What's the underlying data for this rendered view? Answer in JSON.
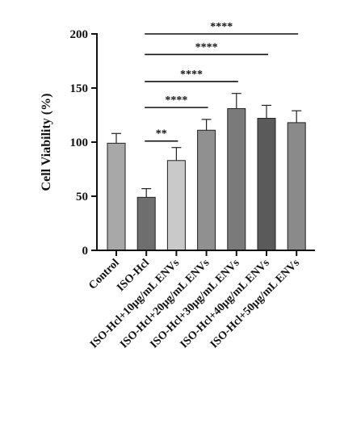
{
  "chart_data": {
    "type": "bar",
    "title": "",
    "xlabel": "",
    "ylabel": "Cell Viability (%)",
    "ylim": [
      0,
      200
    ],
    "yticks": [
      "0",
      "50",
      "100",
      "150",
      "200"
    ],
    "categories": [
      "Control",
      "ISO-Hcl",
      "ISO-Hcl+10μg/mL ENVs",
      "ISO-Hcl+20μg/mL ENVs",
      "ISO-Hcl+30μg/mL ENVs",
      "ISO-Hcl+40μg/mL ENVs",
      "ISO-Hcl+50μg/mL ENVs"
    ],
    "values": [
      99,
      49,
      83,
      111,
      131,
      122,
      118
    ],
    "errors": [
      9,
      8,
      12,
      10,
      14,
      12,
      11
    ],
    "bar_colors": [
      "#a8a8a8",
      "#6e6e6e",
      "#c9c9c9",
      "#909090",
      "#7a7a7a",
      "#5a5a5a",
      "#8a8a8a"
    ],
    "significance": [
      {
        "from": 1,
        "to": 2,
        "label": "**",
        "y": 101
      },
      {
        "from": 1,
        "to": 3,
        "label": "****",
        "y": 132
      },
      {
        "from": 1,
        "to": 4,
        "label": "****",
        "y": 156
      },
      {
        "from": 1,
        "to": 5,
        "label": "****",
        "y": 181
      },
      {
        "from": 1,
        "to": 6,
        "label": "****",
        "y": 200
      }
    ],
    "grid": false,
    "legend": "none"
  }
}
